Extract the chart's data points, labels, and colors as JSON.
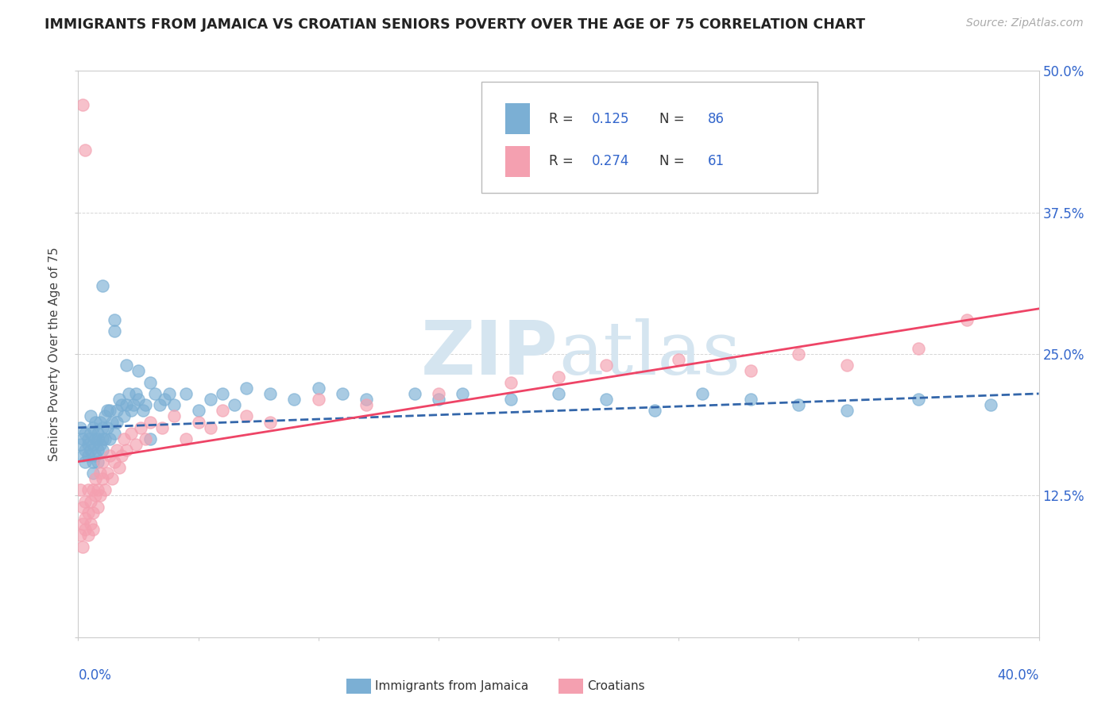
{
  "title": "IMMIGRANTS FROM JAMAICA VS CROATIAN SENIORS POVERTY OVER THE AGE OF 75 CORRELATION CHART",
  "source": "Source: ZipAtlas.com",
  "ylabel": "Seniors Poverty Over the Age of 75",
  "R_jamaica": 0.125,
  "N_jamaica": 86,
  "R_croatian": 0.274,
  "N_croatian": 61,
  "color_jamaica": "#7BAFD4",
  "color_croatian": "#F4A0B0",
  "color_trendline_jamaica": "#3366AA",
  "color_trendline_croatian": "#EE4466",
  "color_stats": "#3366CC",
  "watermark_color": "#D5E5F0",
  "background_color": "#FFFFFF",
  "xlim": [
    0.0,
    0.4
  ],
  "ylim": [
    0.0,
    0.5
  ],
  "jamaica_x": [
    0.001,
    0.001,
    0.002,
    0.002,
    0.003,
    0.003,
    0.003,
    0.004,
    0.004,
    0.004,
    0.005,
    0.005,
    0.005,
    0.006,
    0.006,
    0.006,
    0.007,
    0.007,
    0.007,
    0.008,
    0.008,
    0.008,
    0.009,
    0.009,
    0.01,
    0.01,
    0.01,
    0.011,
    0.011,
    0.012,
    0.012,
    0.013,
    0.013,
    0.014,
    0.015,
    0.015,
    0.016,
    0.016,
    0.017,
    0.018,
    0.019,
    0.02,
    0.021,
    0.022,
    0.023,
    0.024,
    0.025,
    0.027,
    0.028,
    0.03,
    0.032,
    0.034,
    0.036,
    0.038,
    0.04,
    0.045,
    0.05,
    0.055,
    0.06,
    0.065,
    0.07,
    0.08,
    0.09,
    0.1,
    0.11,
    0.12,
    0.14,
    0.15,
    0.16,
    0.18,
    0.2,
    0.22,
    0.24,
    0.26,
    0.28,
    0.3,
    0.32,
    0.35,
    0.38,
    0.01,
    0.015,
    0.02,
    0.025,
    0.03,
    0.006,
    0.008
  ],
  "jamaica_y": [
    0.185,
    0.17,
    0.16,
    0.175,
    0.165,
    0.155,
    0.18,
    0.17,
    0.16,
    0.175,
    0.18,
    0.165,
    0.195,
    0.155,
    0.17,
    0.185,
    0.175,
    0.16,
    0.19,
    0.165,
    0.18,
    0.175,
    0.19,
    0.17,
    0.175,
    0.185,
    0.165,
    0.195,
    0.175,
    0.185,
    0.2,
    0.175,
    0.2,
    0.19,
    0.18,
    0.27,
    0.19,
    0.2,
    0.21,
    0.205,
    0.195,
    0.205,
    0.215,
    0.2,
    0.205,
    0.215,
    0.21,
    0.2,
    0.205,
    0.225,
    0.215,
    0.205,
    0.21,
    0.215,
    0.205,
    0.215,
    0.2,
    0.21,
    0.215,
    0.205,
    0.22,
    0.215,
    0.21,
    0.22,
    0.215,
    0.21,
    0.215,
    0.21,
    0.215,
    0.21,
    0.215,
    0.21,
    0.2,
    0.215,
    0.21,
    0.205,
    0.2,
    0.21,
    0.205,
    0.31,
    0.28,
    0.24,
    0.235,
    0.175,
    0.145,
    0.155
  ],
  "croatian_x": [
    0.001,
    0.001,
    0.002,
    0.002,
    0.002,
    0.003,
    0.003,
    0.003,
    0.004,
    0.004,
    0.004,
    0.005,
    0.005,
    0.006,
    0.006,
    0.006,
    0.007,
    0.007,
    0.008,
    0.008,
    0.009,
    0.009,
    0.01,
    0.01,
    0.011,
    0.012,
    0.013,
    0.014,
    0.015,
    0.016,
    0.017,
    0.018,
    0.019,
    0.02,
    0.022,
    0.024,
    0.026,
    0.028,
    0.03,
    0.035,
    0.04,
    0.045,
    0.05,
    0.055,
    0.06,
    0.07,
    0.08,
    0.1,
    0.12,
    0.15,
    0.18,
    0.2,
    0.22,
    0.25,
    0.28,
    0.3,
    0.32,
    0.35,
    0.37,
    0.002,
    0.003
  ],
  "croatian_y": [
    0.09,
    0.13,
    0.1,
    0.115,
    0.08,
    0.105,
    0.095,
    0.12,
    0.11,
    0.09,
    0.13,
    0.12,
    0.1,
    0.11,
    0.13,
    0.095,
    0.125,
    0.14,
    0.13,
    0.115,
    0.145,
    0.125,
    0.14,
    0.155,
    0.13,
    0.145,
    0.16,
    0.14,
    0.155,
    0.165,
    0.15,
    0.16,
    0.175,
    0.165,
    0.18,
    0.17,
    0.185,
    0.175,
    0.19,
    0.185,
    0.195,
    0.175,
    0.19,
    0.185,
    0.2,
    0.195,
    0.19,
    0.21,
    0.205,
    0.215,
    0.225,
    0.23,
    0.24,
    0.245,
    0.235,
    0.25,
    0.24,
    0.255,
    0.28,
    0.47,
    0.43
  ],
  "trendline_jamaica_x0": 0.0,
  "trendline_jamaica_x1": 0.4,
  "trendline_jamaica_y0": 0.185,
  "trendline_jamaica_y1": 0.215,
  "trendline_croatian_x0": 0.0,
  "trendline_croatian_x1": 0.4,
  "trendline_croatian_y0": 0.155,
  "trendline_croatian_y1": 0.29
}
